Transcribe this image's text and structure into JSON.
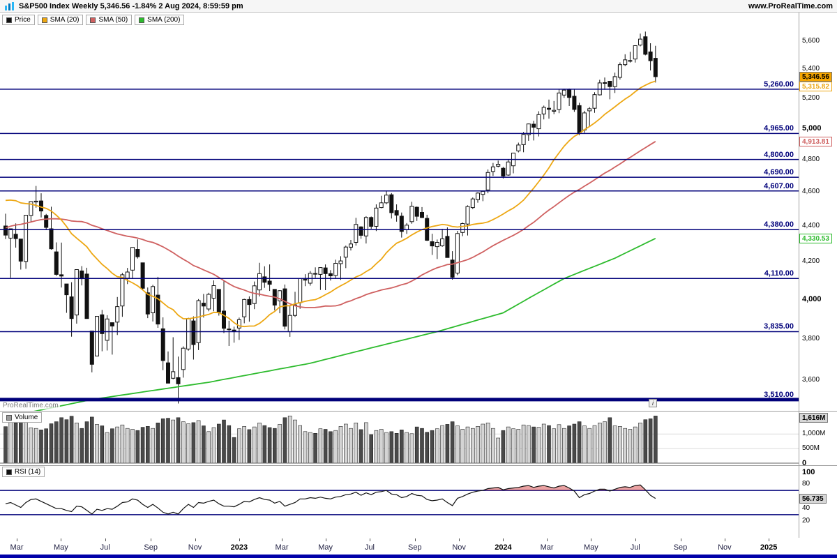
{
  "header": {
    "title": "S&P500 Index Weekly 5,346.56 -1.84% 2 Aug 2024, 8:59:59 pm",
    "website": "www.ProRealTime.com"
  },
  "legend": {
    "price": "Price",
    "sma20": "SMA (20)",
    "sma50": "SMA (50)",
    "sma200": "SMA (200)"
  },
  "volume_label": "Volume",
  "rsi_label": "RSI (14)",
  "watermark": "ProRealTime.com",
  "icons": {
    "info": "i"
  },
  "colors": {
    "sma20": "#eda712",
    "sma50": "#cf6060",
    "sma200": "#2dbb2d",
    "price_up": "#ffffff",
    "price_down": "#111111",
    "level_line": "#00007a",
    "price_badge_bg": "#f7a600",
    "volume_up": "#d4d4d4",
    "volume_down": "#4a4a4a",
    "volume_swatch": "#9a9a9a",
    "rsi_swatch": "#111111",
    "rsi_line": "#111111",
    "rsi_overbought_fill": "#d64545",
    "logo_light": "#29b6f6",
    "logo_dark": "#0277bd"
  },
  "chart_data": {
    "type": "candlestick",
    "symbol": "S&P500 Index",
    "timeframe": "Weekly",
    "last": "5,346.56",
    "change": "-1.84%",
    "datetime": "2 Aug 2024, 8:59:59 pm",
    "scale": "log",
    "badges": {
      "price": "5,346.56",
      "sma20": "5,315.82",
      "sma50": "4,913.81",
      "sma200": "4,330.53",
      "volume": "1,616M",
      "rsi": "56.735"
    },
    "levels": [
      5260,
      4965,
      4800,
      4690,
      4607,
      4380,
      4110,
      3835,
      3510
    ],
    "level_labels": [
      "5,260.00",
      "4,965.00",
      "4,800.00",
      "4,690.00",
      "4,607.00",
      "4,380.00",
      "4,110.00",
      "3,835.00",
      "3,510.00"
    ],
    "thick_level": 3510,
    "price_ticks": [
      {
        "v": 5600,
        "label": "5,600"
      },
      {
        "v": 5400,
        "label": "5,400"
      },
      {
        "v": 5200,
        "label": "5,200"
      },
      {
        "v": 5000,
        "label": "5,000",
        "bold": true
      },
      {
        "v": 4800,
        "label": "4,800"
      },
      {
        "v": 4600,
        "label": "4,600"
      },
      {
        "v": 4400,
        "label": "4,400"
      },
      {
        "v": 4200,
        "label": "4,200"
      },
      {
        "v": 4000,
        "label": "4,000",
        "bold": true
      },
      {
        "v": 3800,
        "label": "3,800"
      },
      {
        "v": 3600,
        "label": "3,600"
      }
    ],
    "volume_ticks": [
      {
        "v": 1000,
        "label": "1,000M"
      },
      {
        "v": 500,
        "label": "500M"
      },
      {
        "v": 0,
        "label": "0",
        "bold": true
      }
    ],
    "rsi_ticks": [
      {
        "v": 100,
        "label": "100",
        "bold": true
      },
      {
        "v": 80,
        "label": "80"
      },
      {
        "v": 40,
        "label": "40"
      },
      {
        "v": 20,
        "label": "20"
      }
    ],
    "rsi_levels": [
      70,
      30
    ],
    "time_ticks": [
      {
        "label": "Mar",
        "i": 2.2
      },
      {
        "label": "May",
        "i": 10.9
      },
      {
        "label": "Jul",
        "i": 19.6
      },
      {
        "label": "Sep",
        "i": 28.6
      },
      {
        "label": "Nov",
        "i": 37.3
      },
      {
        "label": "2023",
        "i": 46,
        "bold": true
      },
      {
        "label": "Mar",
        "i": 54.4
      },
      {
        "label": "May",
        "i": 63
      },
      {
        "label": "Jul",
        "i": 71.7
      },
      {
        "label": "Sep",
        "i": 80.6
      },
      {
        "label": "Nov",
        "i": 89.3
      },
      {
        "label": "2024",
        "i": 98,
        "bold": true
      },
      {
        "label": "Mar",
        "i": 106.6
      },
      {
        "label": "May",
        "i": 115.3
      },
      {
        "label": "Jul",
        "i": 124
      },
      {
        "label": "Sep",
        "i": 132.9
      },
      {
        "label": "Nov",
        "i": 141.6
      },
      {
        "label": "2025",
        "i": 150.3,
        "bold": true
      }
    ],
    "candles": [
      [
        4401,
        4472,
        4327,
        4349
      ],
      [
        4332,
        4385,
        4114,
        4385
      ],
      [
        4354,
        4416,
        4279,
        4329
      ],
      [
        4327,
        4327,
        4158,
        4204
      ],
      [
        4202,
        4465,
        4162,
        4463
      ],
      [
        4462,
        4546,
        4424,
        4543
      ],
      [
        4541,
        4637,
        4507,
        4546
      ],
      [
        4547,
        4593,
        4450,
        4488
      ],
      [
        4462,
        4471,
        4381,
        4393
      ],
      [
        4385,
        4513,
        4267,
        4272
      ],
      [
        4255,
        4308,
        4124,
        4132
      ],
      [
        4130,
        4307,
        4062,
        4123
      ],
      [
        4081,
        4081,
        3930,
        4024
      ],
      [
        4013,
        4090,
        3810,
        3901
      ],
      [
        3919,
        4158,
        3875,
        4158
      ],
      [
        4151,
        4177,
        4073,
        4109
      ],
      [
        4134,
        4168,
        3900,
        3901
      ],
      [
        3838,
        3838,
        3637,
        3675
      ],
      [
        3715,
        3913,
        3715,
        3912
      ],
      [
        3920,
        3945,
        3738,
        3825
      ],
      [
        3792,
        3918,
        3742,
        3899
      ],
      [
        3880,
        3880,
        3722,
        3863
      ],
      [
        3883,
        4012,
        3818,
        3962
      ],
      [
        3965,
        4140,
        3910,
        4130
      ],
      [
        4112,
        4167,
        4080,
        4145
      ],
      [
        4155,
        4280,
        4112,
        4280
      ],
      [
        4269,
        4325,
        4218,
        4228
      ],
      [
        4195,
        4195,
        4048,
        4058
      ],
      [
        4034,
        4062,
        3903,
        3924
      ],
      [
        3930,
        4076,
        3886,
        4067
      ],
      [
        4022,
        4119,
        3854,
        3873
      ],
      [
        3849,
        3907,
        3647,
        3693
      ],
      [
        3682,
        3737,
        3585,
        3586
      ],
      [
        3609,
        3807,
        3604,
        3640
      ],
      [
        3612,
        3712,
        3492,
        3583
      ],
      [
        3650,
        3762,
        3612,
        3753
      ],
      [
        3749,
        3905,
        3741,
        3901
      ],
      [
        3889,
        3912,
        3698,
        3771
      ],
      [
        3780,
        4001,
        3744,
        3993
      ],
      [
        3980,
        4028,
        3906,
        3965
      ],
      [
        3950,
        4034,
        3938,
        4026
      ],
      [
        4006,
        4100,
        3938,
        4072
      ],
      [
        4052,
        4052,
        3916,
        3934
      ],
      [
        3939,
        4101,
        3828,
        3852
      ],
      [
        3848,
        3890,
        3764,
        3845
      ],
      [
        3843,
        3860,
        3780,
        3839
      ],
      [
        3853,
        3906,
        3794,
        3895
      ],
      [
        3910,
        4003,
        3877,
        3999
      ],
      [
        3999,
        4015,
        3885,
        3973
      ],
      [
        3978,
        4094,
        3949,
        4071
      ],
      [
        4049,
        4195,
        4015,
        4136
      ],
      [
        4119,
        4176,
        4060,
        4090
      ],
      [
        4096,
        4186,
        4044,
        4079
      ],
      [
        4052,
        4052,
        3943,
        3970
      ],
      [
        3992,
        4048,
        3928,
        4045
      ],
      [
        4055,
        4078,
        3846,
        3862
      ],
      [
        3835,
        3964,
        3809,
        3917
      ],
      [
        3917,
        4039,
        3909,
        3971
      ],
      [
        3982,
        4110,
        3951,
        4109
      ],
      [
        4103,
        4133,
        4069,
        4105
      ],
      [
        4085,
        4150,
        4072,
        4138
      ],
      [
        4137,
        4170,
        4114,
        4134
      ],
      [
        4132,
        4170,
        4049,
        4169
      ],
      [
        4167,
        4186,
        4048,
        4136
      ],
      [
        4136,
        4155,
        4099,
        4124
      ],
      [
        4126,
        4212,
        4109,
        4192
      ],
      [
        4190,
        4231,
        4103,
        4205
      ],
      [
        4226,
        4290,
        4166,
        4282
      ],
      [
        4281,
        4322,
        4263,
        4299
      ],
      [
        4308,
        4448,
        4290,
        4410
      ],
      [
        4396,
        4400,
        4328,
        4348
      ],
      [
        4344,
        4458,
        4302,
        4450
      ],
      [
        4450,
        4456,
        4385,
        4399
      ],
      [
        4399,
        4527,
        4372,
        4505
      ],
      [
        4508,
        4578,
        4504,
        4536
      ],
      [
        4536,
        4607,
        4528,
        4582
      ],
      [
        4584,
        4594,
        4444,
        4478
      ],
      [
        4491,
        4527,
        4426,
        4464
      ],
      [
        4458,
        4479,
        4335,
        4370
      ],
      [
        4380,
        4418,
        4356,
        4406
      ],
      [
        4426,
        4542,
        4414,
        4516
      ],
      [
        4510,
        4514,
        4430,
        4457
      ],
      [
        4480,
        4511,
        4447,
        4450
      ],
      [
        4445,
        4466,
        4316,
        4320
      ],
      [
        4312,
        4357,
        4238,
        4288
      ],
      [
        4284,
        4324,
        4216,
        4308
      ],
      [
        4289,
        4385,
        4283,
        4328
      ],
      [
        4342,
        4393,
        4223,
        4224
      ],
      [
        4210,
        4259,
        4104,
        4117
      ],
      [
        4139,
        4373,
        4128,
        4358
      ],
      [
        4364,
        4421,
        4343,
        4415
      ],
      [
        4412,
        4521,
        4347,
        4514
      ],
      [
        4508,
        4568,
        4499,
        4559
      ],
      [
        4555,
        4599,
        4537,
        4594
      ],
      [
        4586,
        4609,
        4546,
        4604
      ],
      [
        4613,
        4738,
        4593,
        4719
      ],
      [
        4725,
        4778,
        4698,
        4754
      ],
      [
        4758,
        4793,
        4751,
        4770
      ],
      [
        4745,
        4754,
        4682,
        4697
      ],
      [
        4703,
        4798,
        4699,
        4784
      ],
      [
        4760,
        4842,
        4714,
        4840
      ],
      [
        4854,
        4906,
        4844,
        4891
      ],
      [
        4893,
        4975,
        4845,
        4959
      ],
      [
        4957,
        5030,
        4918,
        5027
      ],
      [
        5026,
        5048,
        4920,
        5006
      ],
      [
        4996,
        5111,
        4946,
        5089
      ],
      [
        5093,
        5149,
        5057,
        5137
      ],
      [
        5131,
        5189,
        5062,
        5124
      ],
      [
        5111,
        5180,
        5092,
        5117
      ],
      [
        5123,
        5261,
        5098,
        5234
      ],
      [
        5220,
        5264,
        5201,
        5254
      ],
      [
        5258,
        5265,
        5146,
        5204
      ],
      [
        5212,
        5263,
        5107,
        5123
      ],
      [
        5149,
        5168,
        4954,
        4967
      ],
      [
        4988,
        5114,
        4970,
        5100
      ],
      [
        5114,
        5139,
        5011,
        5128
      ],
      [
        5131,
        5239,
        5101,
        5223
      ],
      [
        5221,
        5325,
        5217,
        5303
      ],
      [
        5305,
        5341,
        5256,
        5305
      ],
      [
        5315,
        5316,
        5191,
        5278
      ],
      [
        5278,
        5375,
        5234,
        5347
      ],
      [
        5342,
        5447,
        5327,
        5431
      ],
      [
        5431,
        5505,
        5420,
        5465
      ],
      [
        5459,
        5523,
        5446,
        5460
      ],
      [
        5471,
        5570,
        5446,
        5567
      ],
      [
        5572,
        5656,
        5562,
        5615
      ],
      [
        5632,
        5670,
        5497,
        5505
      ],
      [
        5522,
        5585,
        5390,
        5459
      ],
      [
        5476,
        5566,
        5306,
        5346.56
      ]
    ],
    "sma_seed_closes": [
      3913,
      3975,
      4020,
      4129,
      4185,
      4180,
      4181,
      4233,
      4174,
      4156,
      4204,
      4230,
      4247,
      4280,
      4166,
      4281,
      4352,
      4327,
      4412,
      4370,
      4395,
      4437,
      4442,
      4468,
      4509,
      4535,
      4459,
      4433,
      4358,
      4455,
      4357,
      4391,
      4471,
      4545,
      4605,
      4698,
      4683,
      4539,
      4594,
      4621,
      4677,
      4766,
      4726,
      4663,
      4577,
      4398,
      4432,
      4501,
      4419
    ],
    "sma200_keypoints": [
      [
        0,
        3430
      ],
      [
        17,
        3510
      ],
      [
        40,
        3590
      ],
      [
        60,
        3680
      ],
      [
        85,
        3835
      ],
      [
        98,
        3930
      ],
      [
        110,
        4110
      ],
      [
        120,
        4220
      ],
      [
        128,
        4330.53
      ]
    ],
    "volumes": [
      1250,
      1420,
      1380,
      1520,
      1460,
      1210,
      1190,
      1140,
      1180,
      1350,
      1420,
      1560,
      1490,
      1610,
      1380,
      1190,
      1420,
      1580,
      1330,
      1280,
      1050,
      1180,
      1240,
      1310,
      1190,
      1160,
      1120,
      1230,
      1260,
      1190,
      1380,
      1520,
      1540,
      1480,
      1560,
      1420,
      1350,
      1390,
      1460,
      1280,
      1080,
      1220,
      1340,
      1480,
      1290,
      880,
      1180,
      1260,
      1150,
      1240,
      1380,
      1290,
      1220,
      1190,
      1330,
      1560,
      1620,
      1480,
      1290,
      1080,
      1050,
      1020,
      1180,
      1160,
      1080,
      1120,
      1260,
      1340,
      1190,
      1380,
      1150,
      1390,
      980,
      1120,
      1160,
      1050,
      1080,
      1020,
      1140,
      1050,
      1010,
      1240,
      1190,
      1060,
      1120,
      1180,
      1290,
      1330,
      1420,
      1280,
      1160,
      1240,
      1190,
      1260,
      1340,
      1380,
      1190,
      860,
      1120,
      1240,
      1180,
      1160,
      1310,
      1290,
      1240,
      1230,
      1340,
      1290,
      1180,
      1320,
      1190,
      1280,
      1340,
      1420,
      1280,
      1190,
      1290,
      1380,
      1420,
      1560,
      1280,
      1260,
      1190,
      1160,
      1240,
      1380,
      1490,
      1520,
      1616
    ],
    "volume_scale_max": 1650,
    "rsi": [
      48,
      50,
      46,
      42,
      50,
      55,
      56,
      52,
      48,
      44,
      40,
      40,
      37,
      35,
      44,
      43,
      37,
      31,
      39,
      37,
      40,
      39,
      44,
      50,
      51,
      56,
      54,
      47,
      42,
      47,
      41,
      34,
      31,
      34,
      31,
      40,
      47,
      42,
      50,
      49,
      52,
      54,
      48,
      44,
      44,
      43,
      47,
      52,
      51,
      55,
      58,
      55,
      54,
      49,
      52,
      44,
      47,
      50,
      56,
      56,
      58,
      57,
      59,
      57,
      56,
      59,
      60,
      63,
      64,
      67,
      62,
      66,
      63,
      67,
      68,
      70,
      64,
      63,
      58,
      60,
      65,
      62,
      61,
      55,
      53,
      54,
      56,
      50,
      45,
      57,
      60,
      64,
      67,
      69,
      70,
      73,
      74,
      75,
      71,
      73,
      74,
      75,
      77,
      78,
      75,
      77,
      78,
      76,
      74,
      77,
      78,
      74,
      69,
      58,
      63,
      65,
      69,
      72,
      72,
      69,
      72,
      75,
      76,
      75,
      78,
      79,
      71,
      62,
      56.735
    ]
  }
}
